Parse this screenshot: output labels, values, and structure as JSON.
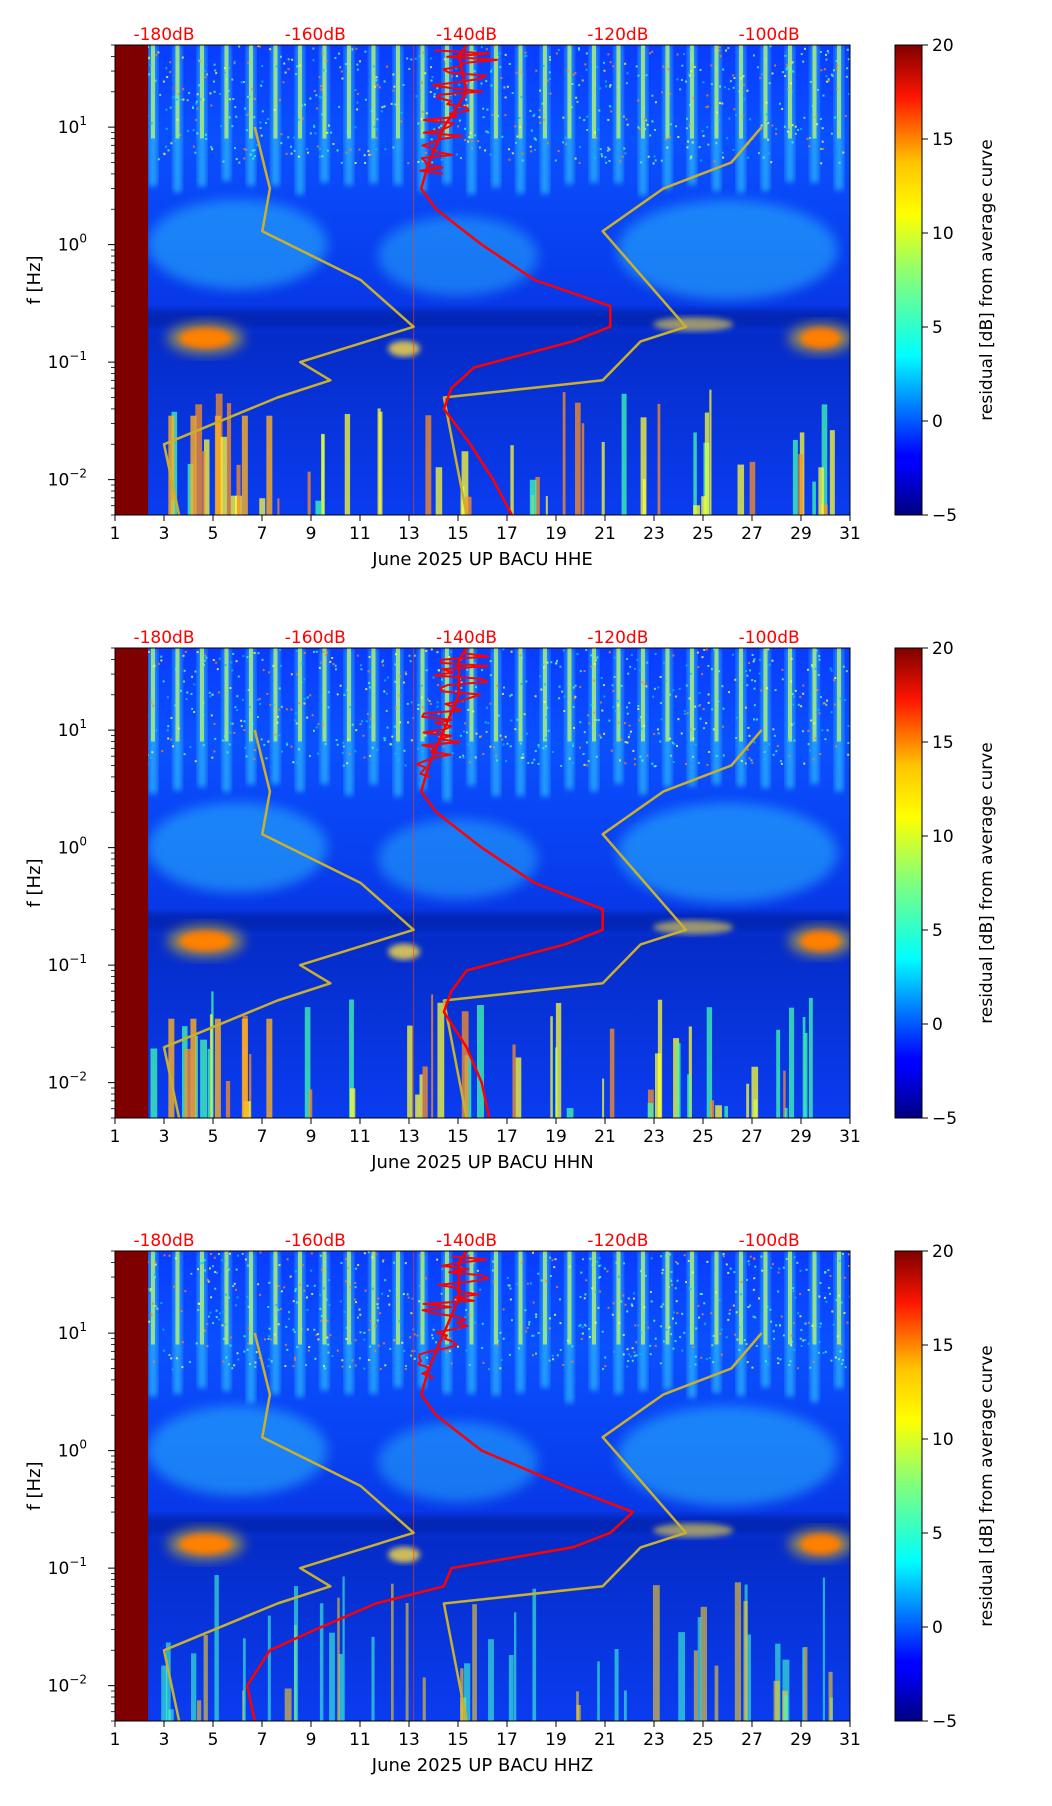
{
  "colors": {
    "top_axis_label": "#ff0000",
    "psd_curve": "#ff0000",
    "noise_model_curve": "#c8b030",
    "gap_fill": "#7f0000"
  },
  "chart_data": [
    {
      "type": "heatmap",
      "channel": "HHE",
      "xlabel": "June 2025 UP BACU  HHE",
      "ylabel": "f [Hz]",
      "x_ticks": [
        "1",
        "3",
        "5",
        "7",
        "9",
        "11",
        "13",
        "15",
        "17",
        "19",
        "21",
        "23",
        "25",
        "27",
        "29",
        "31"
      ],
      "xlim": [
        1,
        31
      ],
      "ylim_hz": [
        0.005,
        50
      ],
      "y_ticks": [
        "10^-2",
        "10^-1",
        "10^0",
        "10^1"
      ],
      "top_ticks": [
        "-180dB",
        "-160dB",
        "-140dB",
        "-120dB",
        "-100dB"
      ],
      "colorbar": {
        "label": "residual [dB] from average curve",
        "ticks": [
          "−5",
          "0",
          "5",
          "10",
          "15",
          "20"
        ],
        "range": [
          -5,
          20
        ]
      },
      "data_gap_days": [
        1,
        2.35
      ],
      "psd_curve_db": [
        [
          0.005,
          -134
        ],
        [
          0.01,
          -136.5
        ],
        [
          0.02,
          -139.5
        ],
        [
          0.04,
          -143
        ],
        [
          0.06,
          -142
        ],
        [
          0.09,
          -139
        ],
        [
          0.15,
          -126
        ],
        [
          0.2,
          -121
        ],
        [
          0.3,
          -121
        ],
        [
          0.5,
          -131
        ],
        [
          1.0,
          -138
        ],
        [
          2.0,
          -144
        ],
        [
          3.0,
          -146
        ],
        [
          5.0,
          -145
        ],
        [
          10.0,
          -143
        ],
        [
          20.0,
          -140
        ],
        [
          40.0,
          -141
        ],
        [
          50.0,
          -140
        ]
      ],
      "noise_model_low_db": [
        [
          0.005,
          -178
        ],
        [
          0.01,
          -179
        ],
        [
          0.02,
          -180
        ],
        [
          0.05,
          -165
        ],
        [
          0.07,
          -158
        ],
        [
          0.1,
          -162
        ],
        [
          0.2,
          -147
        ],
        [
          0.5,
          -154
        ],
        [
          1.3,
          -167
        ],
        [
          3.0,
          -166
        ],
        [
          10.0,
          -168
        ]
      ],
      "noise_model_high_db": [
        [
          0.005,
          -140
        ],
        [
          0.05,
          -143
        ],
        [
          0.07,
          -122
        ],
        [
          0.15,
          -117
        ],
        [
          0.2,
          -111
        ],
        [
          1.3,
          -122
        ],
        [
          3.0,
          -114
        ],
        [
          5.0,
          -105
        ],
        [
          10.0,
          -101
        ]
      ]
    },
    {
      "type": "heatmap",
      "channel": "HHN",
      "xlabel": "June 2025 UP BACU  HHN",
      "ylabel": "f [Hz]",
      "x_ticks": [
        "1",
        "3",
        "5",
        "7",
        "9",
        "11",
        "13",
        "15",
        "17",
        "19",
        "21",
        "23",
        "25",
        "27",
        "29",
        "31"
      ],
      "xlim": [
        1,
        31
      ],
      "ylim_hz": [
        0.005,
        50
      ],
      "y_ticks": [
        "10^-2",
        "10^-1",
        "10^0",
        "10^1"
      ],
      "top_ticks": [
        "-180dB",
        "-160dB",
        "-140dB",
        "-120dB",
        "-100dB"
      ],
      "colorbar": {
        "label": "residual [dB] from average curve",
        "ticks": [
          "−5",
          "0",
          "5",
          "10",
          "15",
          "20"
        ],
        "range": [
          -5,
          20
        ]
      },
      "data_gap_days": [
        1,
        2.35
      ],
      "psd_curve_db": [
        [
          0.005,
          -137
        ],
        [
          0.01,
          -138
        ],
        [
          0.02,
          -140
        ],
        [
          0.04,
          -143
        ],
        [
          0.06,
          -142
        ],
        [
          0.09,
          -140
        ],
        [
          0.15,
          -127
        ],
        [
          0.2,
          -122
        ],
        [
          0.3,
          -122
        ],
        [
          0.5,
          -131
        ],
        [
          1.0,
          -138
        ],
        [
          2.0,
          -144
        ],
        [
          3.0,
          -146
        ],
        [
          5.0,
          -145
        ],
        [
          10.0,
          -143
        ],
        [
          20.0,
          -141
        ],
        [
          40.0,
          -141
        ],
        [
          50.0,
          -140
        ]
      ],
      "noise_model_low_db": [
        [
          0.005,
          -178
        ],
        [
          0.01,
          -179
        ],
        [
          0.02,
          -180
        ],
        [
          0.05,
          -165
        ],
        [
          0.07,
          -158
        ],
        [
          0.1,
          -162
        ],
        [
          0.2,
          -147
        ],
        [
          0.5,
          -154
        ],
        [
          1.3,
          -167
        ],
        [
          3.0,
          -166
        ],
        [
          10.0,
          -168
        ]
      ],
      "noise_model_high_db": [
        [
          0.005,
          -140
        ],
        [
          0.05,
          -143
        ],
        [
          0.07,
          -122
        ],
        [
          0.15,
          -117
        ],
        [
          0.2,
          -111
        ],
        [
          1.3,
          -122
        ],
        [
          3.0,
          -114
        ],
        [
          5.0,
          -105
        ],
        [
          10.0,
          -101
        ]
      ]
    },
    {
      "type": "heatmap",
      "channel": "HHZ",
      "xlabel": "June 2025 UP BACU  HHZ",
      "ylabel": "f [Hz]",
      "x_ticks": [
        "1",
        "3",
        "5",
        "7",
        "9",
        "11",
        "13",
        "15",
        "17",
        "19",
        "21",
        "23",
        "25",
        "27",
        "29",
        "31"
      ],
      "xlim": [
        1,
        31
      ],
      "ylim_hz": [
        0.005,
        50
      ],
      "y_ticks": [
        "10^-2",
        "10^-1",
        "10^0",
        "10^1"
      ],
      "top_ticks": [
        "-180dB",
        "-160dB",
        "-140dB",
        "-120dB",
        "-100dB"
      ],
      "colorbar": {
        "label": "residual [dB] from average curve",
        "ticks": [
          "−5",
          "0",
          "5",
          "10",
          "15",
          "20"
        ],
        "range": [
          -5,
          20
        ]
      },
      "data_gap_days": [
        1,
        2.35
      ],
      "psd_curve_db": [
        [
          0.005,
          -168
        ],
        [
          0.01,
          -169
        ],
        [
          0.02,
          -166
        ],
        [
          0.03,
          -160
        ],
        [
          0.05,
          -152
        ],
        [
          0.07,
          -143
        ],
        [
          0.1,
          -142
        ],
        [
          0.15,
          -126
        ],
        [
          0.2,
          -121
        ],
        [
          0.3,
          -118
        ],
        [
          0.5,
          -127
        ],
        [
          1.0,
          -138
        ],
        [
          2.0,
          -144
        ],
        [
          3.0,
          -146
        ],
        [
          5.0,
          -145
        ],
        [
          10.0,
          -143
        ],
        [
          20.0,
          -141
        ],
        [
          40.0,
          -141
        ],
        [
          50.0,
          -140
        ]
      ],
      "noise_model_low_db": [
        [
          0.005,
          -178
        ],
        [
          0.01,
          -179
        ],
        [
          0.02,
          -180
        ],
        [
          0.05,
          -165
        ],
        [
          0.07,
          -158
        ],
        [
          0.1,
          -162
        ],
        [
          0.2,
          -147
        ],
        [
          0.5,
          -154
        ],
        [
          1.3,
          -167
        ],
        [
          3.0,
          -166
        ],
        [
          10.0,
          -168
        ]
      ],
      "noise_model_high_db": [
        [
          0.005,
          -140
        ],
        [
          0.05,
          -143
        ],
        [
          0.07,
          -122
        ],
        [
          0.15,
          -117
        ],
        [
          0.2,
          -111
        ],
        [
          1.3,
          -122
        ],
        [
          3.0,
          -114
        ],
        [
          5.0,
          -105
        ],
        [
          10.0,
          -101
        ]
      ]
    }
  ]
}
